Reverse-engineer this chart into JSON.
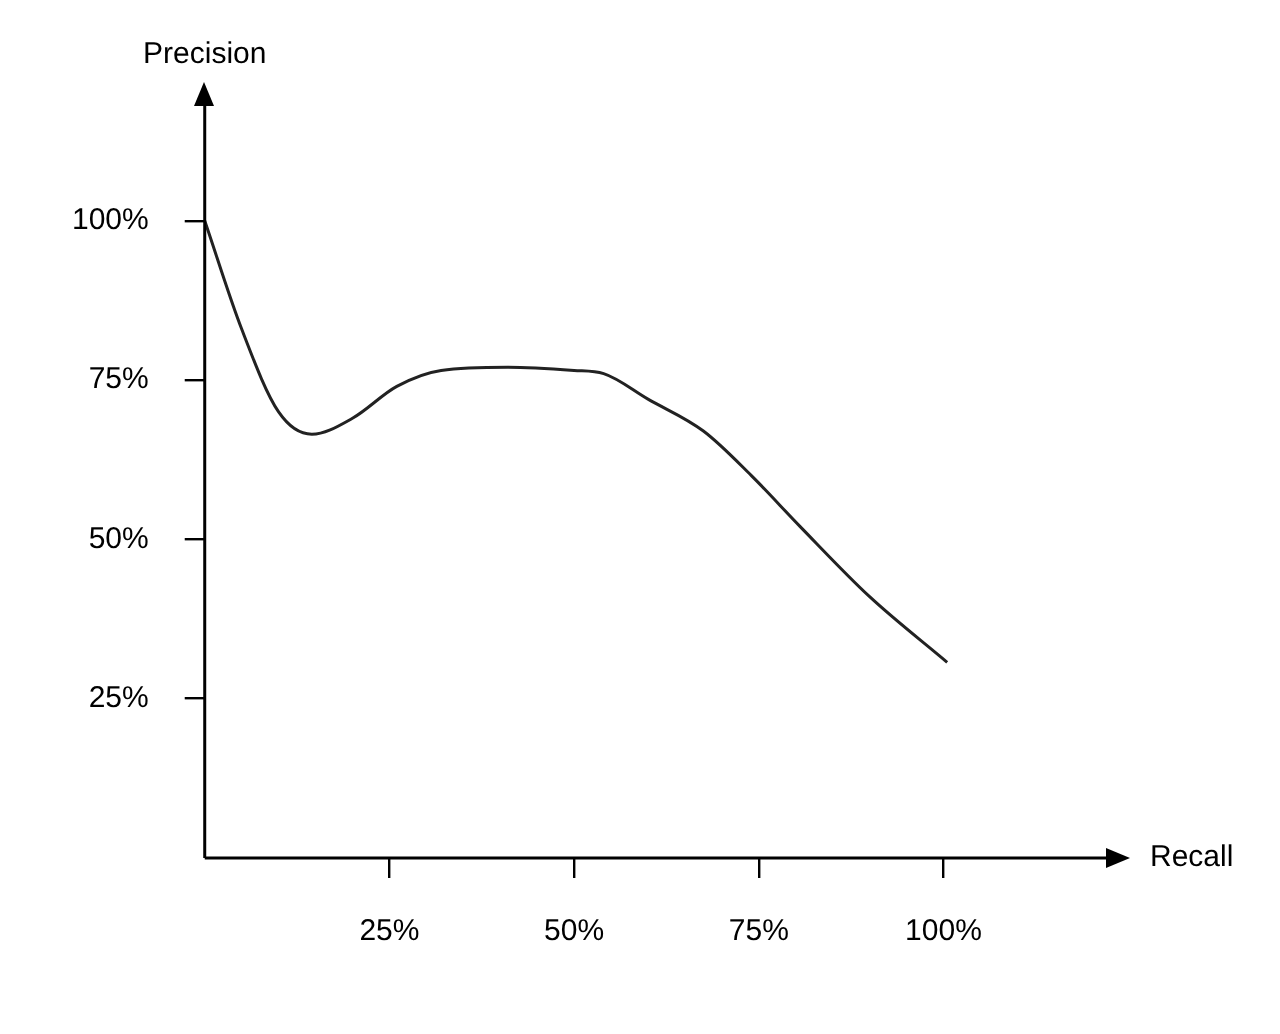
{
  "chart_data": {
    "type": "line",
    "xlabel": "Recall",
    "ylabel": "Precision",
    "x": [
      0,
      5,
      10,
      14.5,
      20,
      26,
      32,
      41,
      50,
      54,
      60,
      67.5,
      74,
      80.6,
      90,
      100.5
    ],
    "series": [
      {
        "color": "#222222",
        "values": [
          100,
          83,
          70,
          66.5,
          69,
          74,
          76.5,
          77,
          76.5,
          76,
          72,
          67,
          60,
          52,
          41,
          30.7
        ]
      }
    ],
    "xlim": [
      0,
      122
    ],
    "ylim": [
      0,
      118
    ],
    "xticks": [
      {
        "value": 25,
        "label": "25%"
      },
      {
        "value": 50,
        "label": "50%"
      },
      {
        "value": 75,
        "label": "75%"
      },
      {
        "value": 100,
        "label": "100%"
      }
    ],
    "yticks": [
      {
        "value": 25,
        "label": "25%"
      },
      {
        "value": 50,
        "label": "50%"
      },
      {
        "value": 75,
        "label": "75%"
      },
      {
        "value": 100,
        "label": "100%"
      }
    ],
    "grid": false,
    "legend": false,
    "marker": "none",
    "line_style": "solid"
  }
}
